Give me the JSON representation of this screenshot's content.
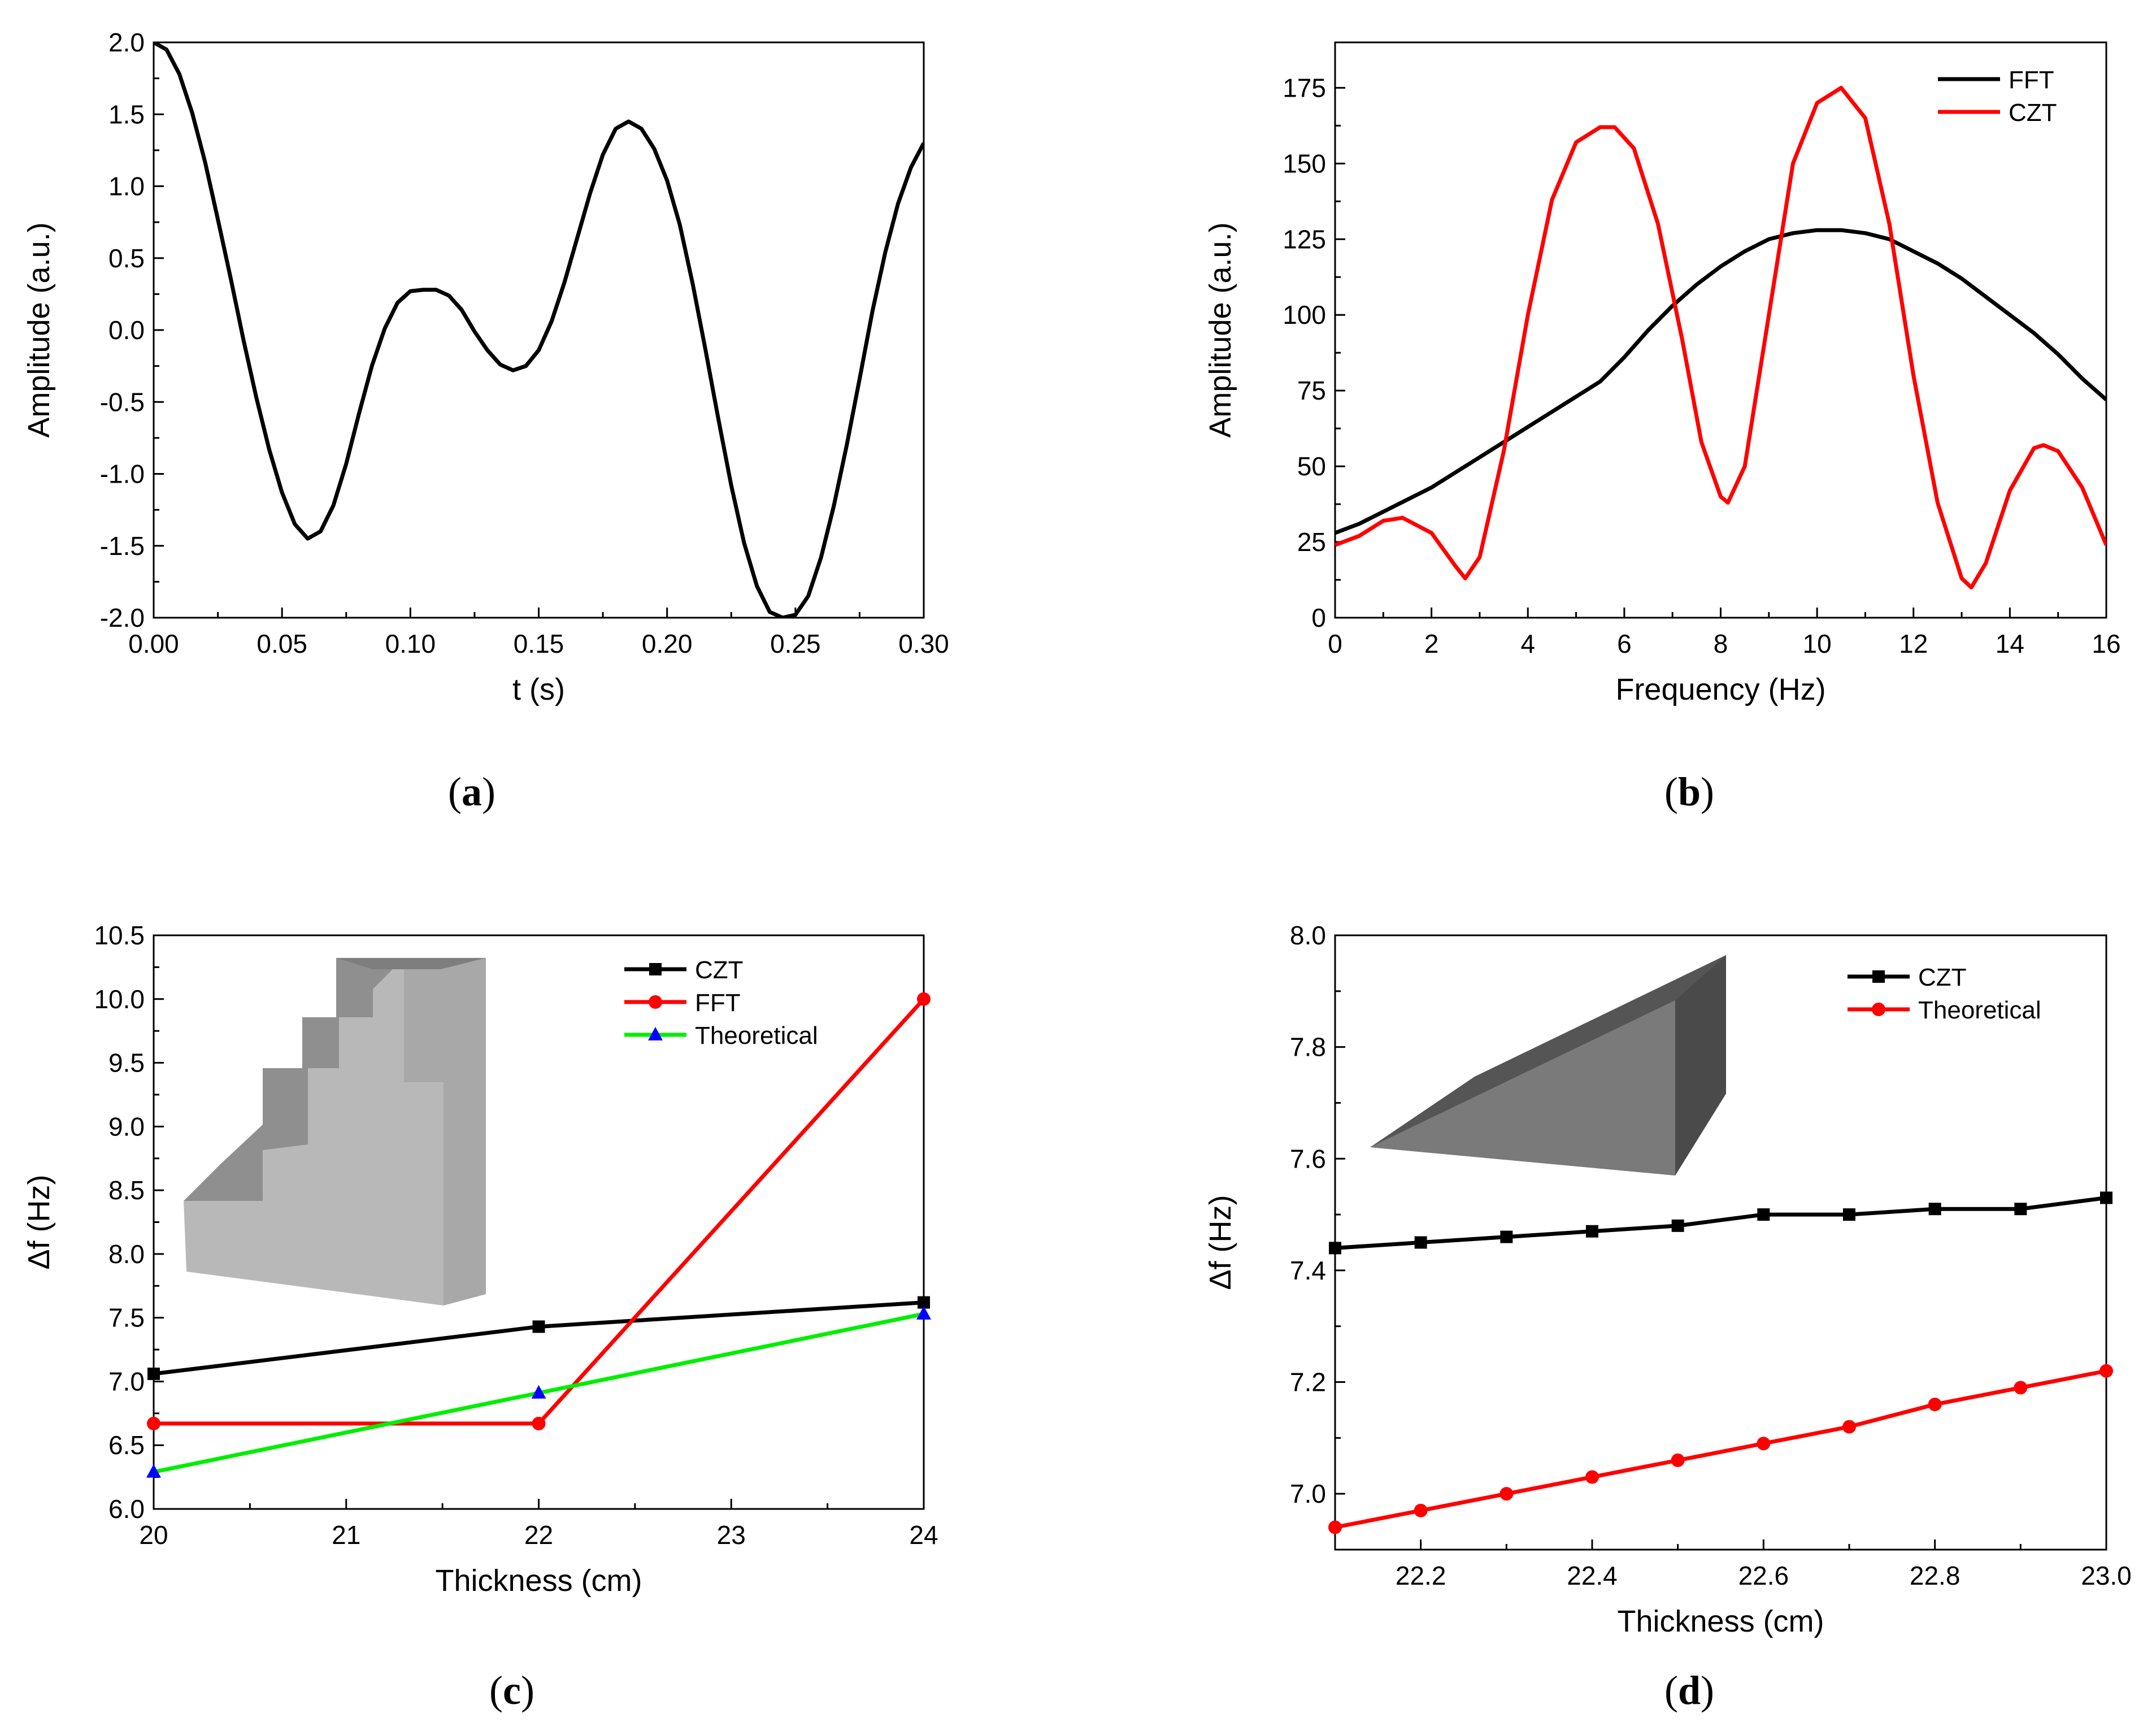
{
  "panels": {
    "a": {
      "label": "a"
    },
    "b": {
      "label": "b"
    },
    "c": {
      "label": "c"
    },
    "d": {
      "label": "d"
    }
  },
  "chart_data": [
    {
      "id": "a",
      "type": "line",
      "title": "",
      "xlabel": "t (s)",
      "ylabel": "Amplitude (a.u.)",
      "xlim": [
        0.0,
        0.3
      ],
      "ylim": [
        -2.0,
        2.0
      ],
      "xticks": [
        "0.00",
        "0.05",
        "0.10",
        "0.15",
        "0.20",
        "0.25",
        "0.30"
      ],
      "yticks": [
        "-2.0",
        "-1.5",
        "-1.0",
        "-0.5",
        "0.0",
        "0.5",
        "1.0",
        "1.5",
        "2.0"
      ],
      "grid": false,
      "series": [
        {
          "color": "#000000",
          "x": [
            0.0,
            0.005,
            0.01,
            0.015,
            0.02,
            0.025,
            0.03,
            0.035,
            0.04,
            0.045,
            0.05,
            0.055,
            0.06,
            0.065,
            0.07,
            0.075,
            0.08,
            0.085,
            0.09,
            0.095,
            0.1,
            0.105,
            0.11,
            0.115,
            0.12,
            0.125,
            0.13,
            0.135,
            0.14,
            0.145,
            0.15,
            0.155,
            0.16,
            0.165,
            0.17,
            0.175,
            0.18,
            0.185,
            0.19,
            0.195,
            0.2,
            0.205,
            0.21,
            0.215,
            0.22,
            0.225,
            0.23,
            0.235,
            0.24,
            0.245,
            0.25,
            0.255,
            0.26,
            0.265,
            0.27,
            0.275,
            0.28,
            0.285,
            0.29,
            0.295,
            0.3
          ],
          "y": [
            2.0,
            1.95,
            1.78,
            1.51,
            1.17,
            0.77,
            0.36,
            -0.07,
            -0.47,
            -0.83,
            -1.13,
            -1.35,
            -1.45,
            -1.4,
            -1.22,
            -0.93,
            -0.58,
            -0.25,
            0.01,
            0.19,
            0.27,
            0.28,
            0.28,
            0.24,
            0.14,
            -0.01,
            -0.14,
            -0.24,
            -0.28,
            -0.25,
            -0.14,
            0.06,
            0.33,
            0.64,
            0.95,
            1.22,
            1.4,
            1.45,
            1.4,
            1.26,
            1.04,
            0.73,
            0.32,
            -0.14,
            -0.62,
            -1.08,
            -1.48,
            -1.78,
            -1.96,
            -2.0,
            -1.98,
            -1.85,
            -1.58,
            -1.22,
            -0.8,
            -0.34,
            0.13,
            0.54,
            0.88,
            1.13,
            1.3
          ]
        }
      ]
    },
    {
      "id": "b",
      "type": "line",
      "title": "",
      "xlabel": "Frequency (Hz)",
      "ylabel": "Amplitude (a.u.)",
      "xlim": [
        0,
        16
      ],
      "ylim": [
        0,
        190
      ],
      "xticks": [
        "0",
        "2",
        "4",
        "6",
        "8",
        "10",
        "12",
        "14",
        "16"
      ],
      "yticks": [
        "0",
        "25",
        "50",
        "75",
        "100",
        "125",
        "150",
        "175"
      ],
      "grid": false,
      "legend": "top-right",
      "series": [
        {
          "name": "FFT",
          "color": "#000000",
          "x": [
            0,
            0.5,
            1,
            1.5,
            2,
            2.5,
            3,
            3.5,
            4,
            4.5,
            5,
            5.5,
            6,
            6.5,
            7,
            7.5,
            8,
            8.5,
            9,
            9.5,
            10,
            10.5,
            11,
            11.5,
            12,
            12.5,
            13,
            13.5,
            14,
            14.5,
            15,
            15.5,
            16
          ],
          "y": [
            28,
            31,
            35,
            39,
            43,
            48,
            53,
            58,
            63,
            68,
            73,
            78,
            86,
            95,
            103,
            110,
            116,
            121,
            125,
            127,
            128,
            128,
            127,
            125,
            121,
            117,
            112,
            106,
            100,
            94,
            87,
            79,
            72
          ]
        },
        {
          "name": "CZT",
          "color": "#ff0000",
          "x": [
            0,
            0.5,
            1,
            1.4,
            2,
            2.5,
            2.7,
            3,
            3.5,
            4,
            4.5,
            5,
            5.5,
            5.8,
            6.2,
            6.7,
            7.2,
            7.6,
            8.0,
            8.15,
            8.5,
            9,
            9.5,
            10,
            10.5,
            11,
            11.5,
            12,
            12.5,
            13,
            13.2,
            13.5,
            14,
            14.5,
            14.7,
            15,
            15.5,
            16
          ],
          "y": [
            24,
            27,
            32,
            33,
            28,
            17,
            13,
            20,
            55,
            100,
            138,
            157,
            162,
            162,
            155,
            130,
            92,
            58,
            40,
            38,
            50,
            100,
            150,
            170,
            175,
            165,
            130,
            80,
            38,
            13,
            10,
            18,
            42,
            56,
            57,
            55,
            43,
            24
          ]
        }
      ]
    },
    {
      "id": "c",
      "type": "line",
      "title": "",
      "xlabel": "Thickness (cm)",
      "ylabel": "Δf (Hz)",
      "xlim": [
        20,
        24
      ],
      "ylim": [
        6.0,
        10.5
      ],
      "xticks": [
        "20",
        "21",
        "22",
        "23",
        "24"
      ],
      "yticks": [
        "6.0",
        "6.5",
        "7.0",
        "7.5",
        "8.0",
        "8.5",
        "9.0",
        "9.5",
        "10.0",
        "10.5"
      ],
      "grid": false,
      "legend": "top-right",
      "series": [
        {
          "name": "CZT",
          "color": "#000000",
          "marker": "square",
          "x": [
            20,
            22,
            24
          ],
          "y": [
            7.06,
            7.43,
            7.62
          ]
        },
        {
          "name": "FFT",
          "color": "#ff0000",
          "marker": "circle",
          "x": [
            20,
            22,
            24
          ],
          "y": [
            6.67,
            6.67,
            10.0
          ]
        },
        {
          "name": "Theoretical",
          "color": "#00ee00",
          "marker": "triangle",
          "marker_color": "#0000ff",
          "x": [
            20,
            22,
            24
          ],
          "y": [
            6.29,
            6.91,
            7.53
          ]
        }
      ]
    },
    {
      "id": "d",
      "type": "line",
      "title": "",
      "xlabel": "Thickness (cm)",
      "ylabel": "Δf (Hz)",
      "xlim": [
        22.1,
        23.0
      ],
      "ylim": [
        6.9,
        8.0
      ],
      "xticks": [
        "22.2",
        "22.4",
        "22.6",
        "22.8",
        "23.0"
      ],
      "yticks": [
        "7.0",
        "7.2",
        "7.4",
        "7.6",
        "7.8",
        "8.0"
      ],
      "grid": false,
      "legend": "top-right",
      "series": [
        {
          "name": "CZT",
          "color": "#000000",
          "marker": "square",
          "x": [
            22.1,
            22.2,
            22.3,
            22.4,
            22.5,
            22.6,
            22.7,
            22.8,
            22.9,
            23.0
          ],
          "y": [
            7.44,
            7.45,
            7.46,
            7.47,
            7.48,
            7.5,
            7.5,
            7.51,
            7.51,
            7.53
          ]
        },
        {
          "name": "Theoretical",
          "color": "#ff0000",
          "marker": "circle",
          "x": [
            22.1,
            22.2,
            22.3,
            22.4,
            22.5,
            22.6,
            22.7,
            22.8,
            22.9,
            23.0
          ],
          "y": [
            6.94,
            6.97,
            7.0,
            7.03,
            7.06,
            7.09,
            7.12,
            7.16,
            7.19,
            7.22
          ]
        }
      ]
    }
  ]
}
